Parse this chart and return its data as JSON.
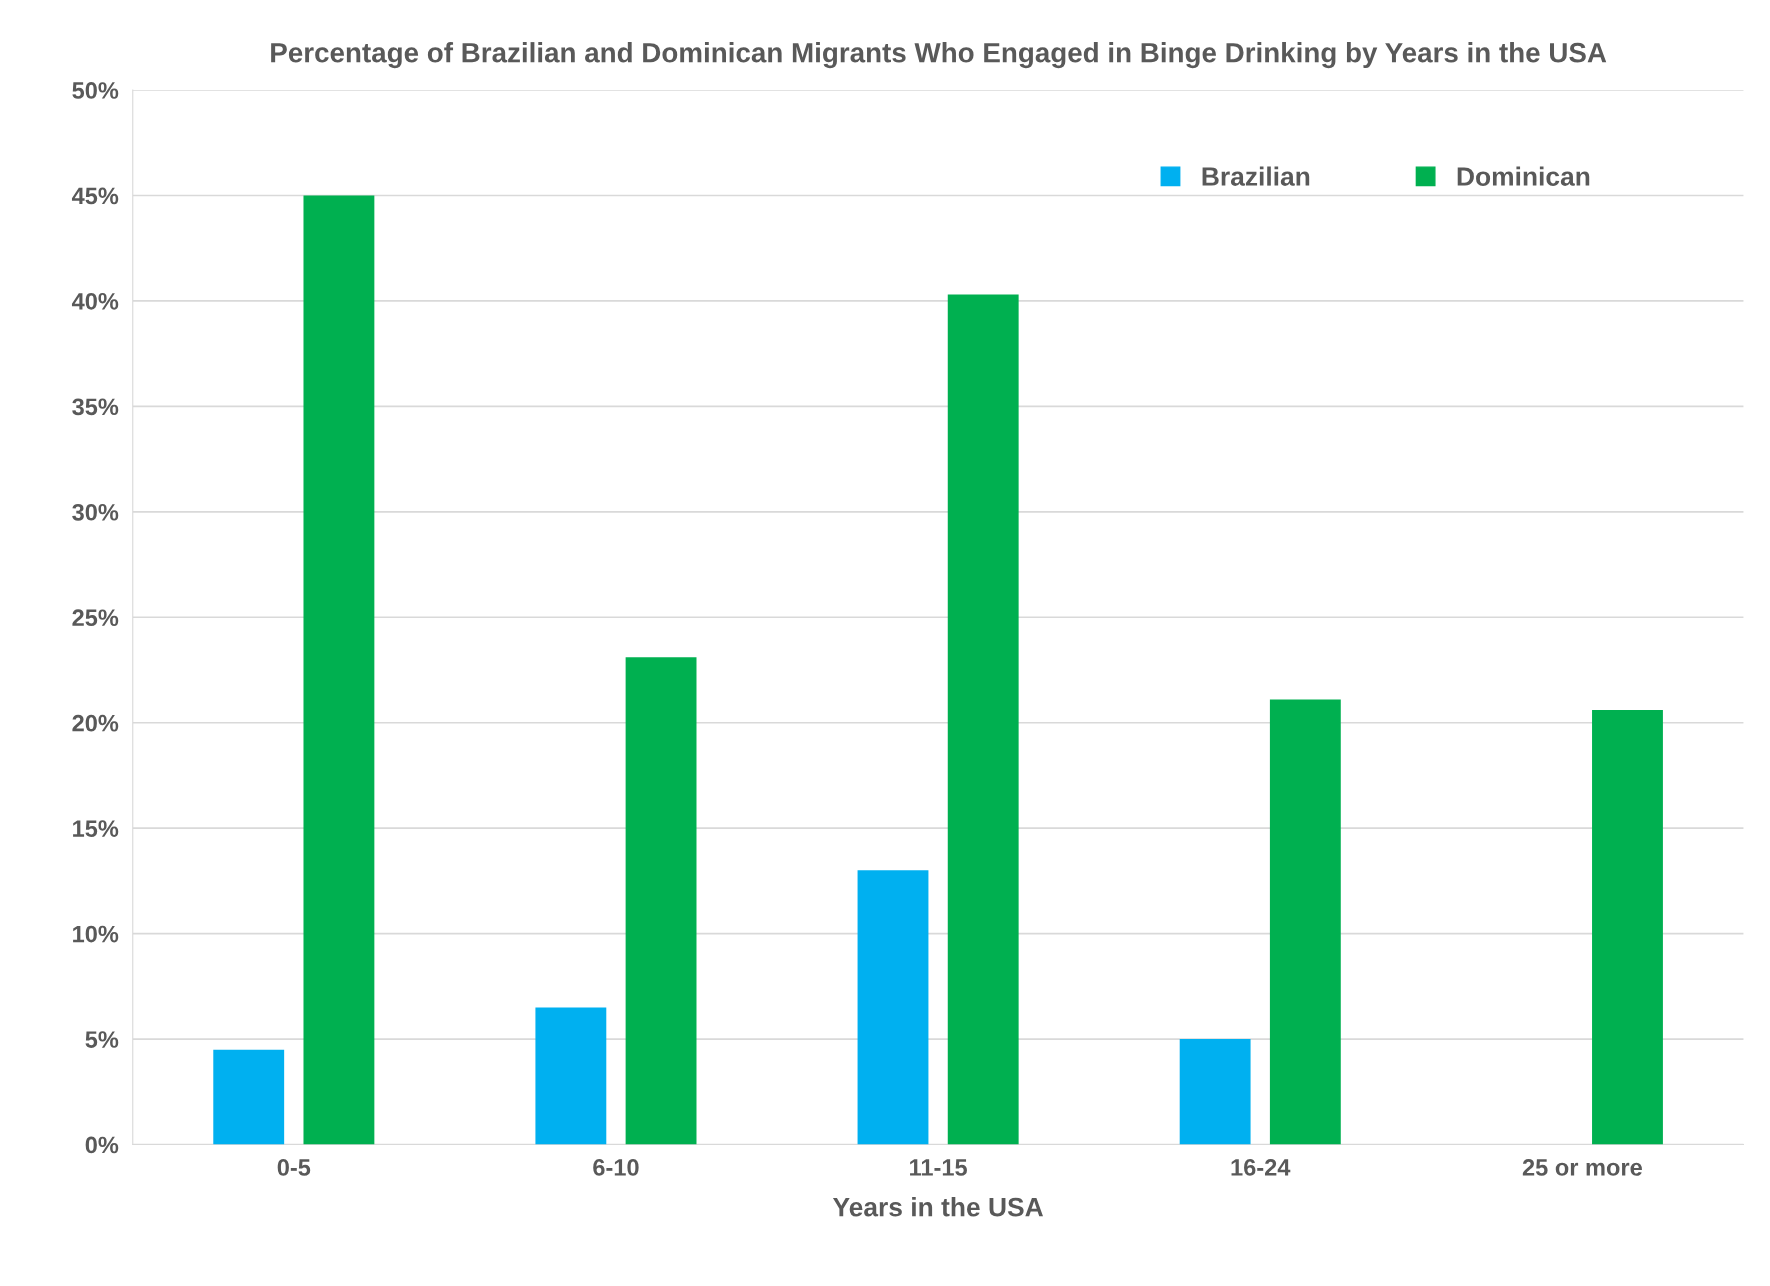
{
  "chart_data": {
    "type": "bar",
    "title": "Percentage of Brazilian and Dominican Migrants Who Engaged in Binge Drinking by Years in the USA",
    "xlabel": "Years in the USA",
    "categories": [
      "0-5",
      "6-10",
      "11-15",
      "16-24",
      "25 or more"
    ],
    "series": [
      {
        "name": "Brazilian",
        "color": "#00b0f0",
        "values": [
          4.5,
          6.5,
          13.0,
          5.0,
          null
        ]
      },
      {
        "name": "Dominican",
        "color": "#00b050",
        "values": [
          45.0,
          23.1,
          40.3,
          21.1,
          20.6
        ]
      }
    ],
    "ylim": [
      0,
      50
    ],
    "yticks": [
      {
        "value": 0,
        "label": "0%"
      },
      {
        "value": 5,
        "label": "5%"
      },
      {
        "value": 10,
        "label": "10%"
      },
      {
        "value": 15,
        "label": "15%"
      },
      {
        "value": 20,
        "label": "20%"
      },
      {
        "value": 25,
        "label": "25%"
      },
      {
        "value": 30,
        "label": "30%"
      },
      {
        "value": 35,
        "label": "35%"
      },
      {
        "value": 40,
        "label": "40%"
      },
      {
        "value": 45,
        "label": "45%"
      },
      {
        "value": 50,
        "label": "50%"
      }
    ],
    "grid": "y",
    "legend": "top right"
  }
}
